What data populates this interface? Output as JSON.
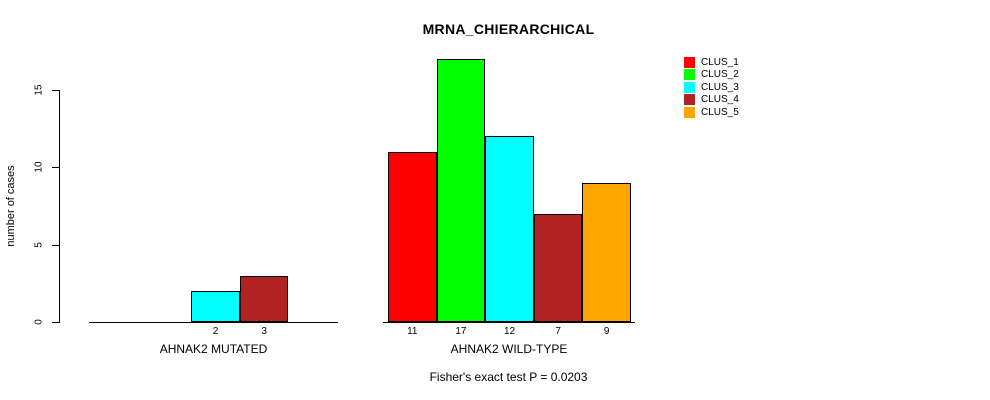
{
  "chart_data": {
    "type": "bar",
    "title": "MRNA_CHIERARCHICAL",
    "ylabel": "number of cases",
    "xlabel": "",
    "footer": "Fisher's exact test P = 0.0203",
    "ylim": [
      0,
      15
    ],
    "yticks": [
      0,
      5,
      10,
      15
    ],
    "grid": false,
    "legend_position": "top-right",
    "categories": [
      "AHNAK2 MUTATED",
      "AHNAK2 WILD-TYPE"
    ],
    "series": [
      {
        "name": "CLUS_1",
        "color": "#ff0000",
        "values": [
          0,
          11
        ]
      },
      {
        "name": "CLUS_2",
        "color": "#00ff00",
        "values": [
          0,
          17
        ]
      },
      {
        "name": "CLUS_3",
        "color": "#00ffff",
        "values": [
          2,
          12
        ]
      },
      {
        "name": "CLUS_4",
        "color": "#b22222",
        "values": [
          3,
          7
        ]
      },
      {
        "name": "CLUS_5",
        "color": "#ffa500",
        "values": [
          0,
          9
        ]
      }
    ],
    "bar_value_labels": {
      "shown": true,
      "show_zero": false
    }
  }
}
